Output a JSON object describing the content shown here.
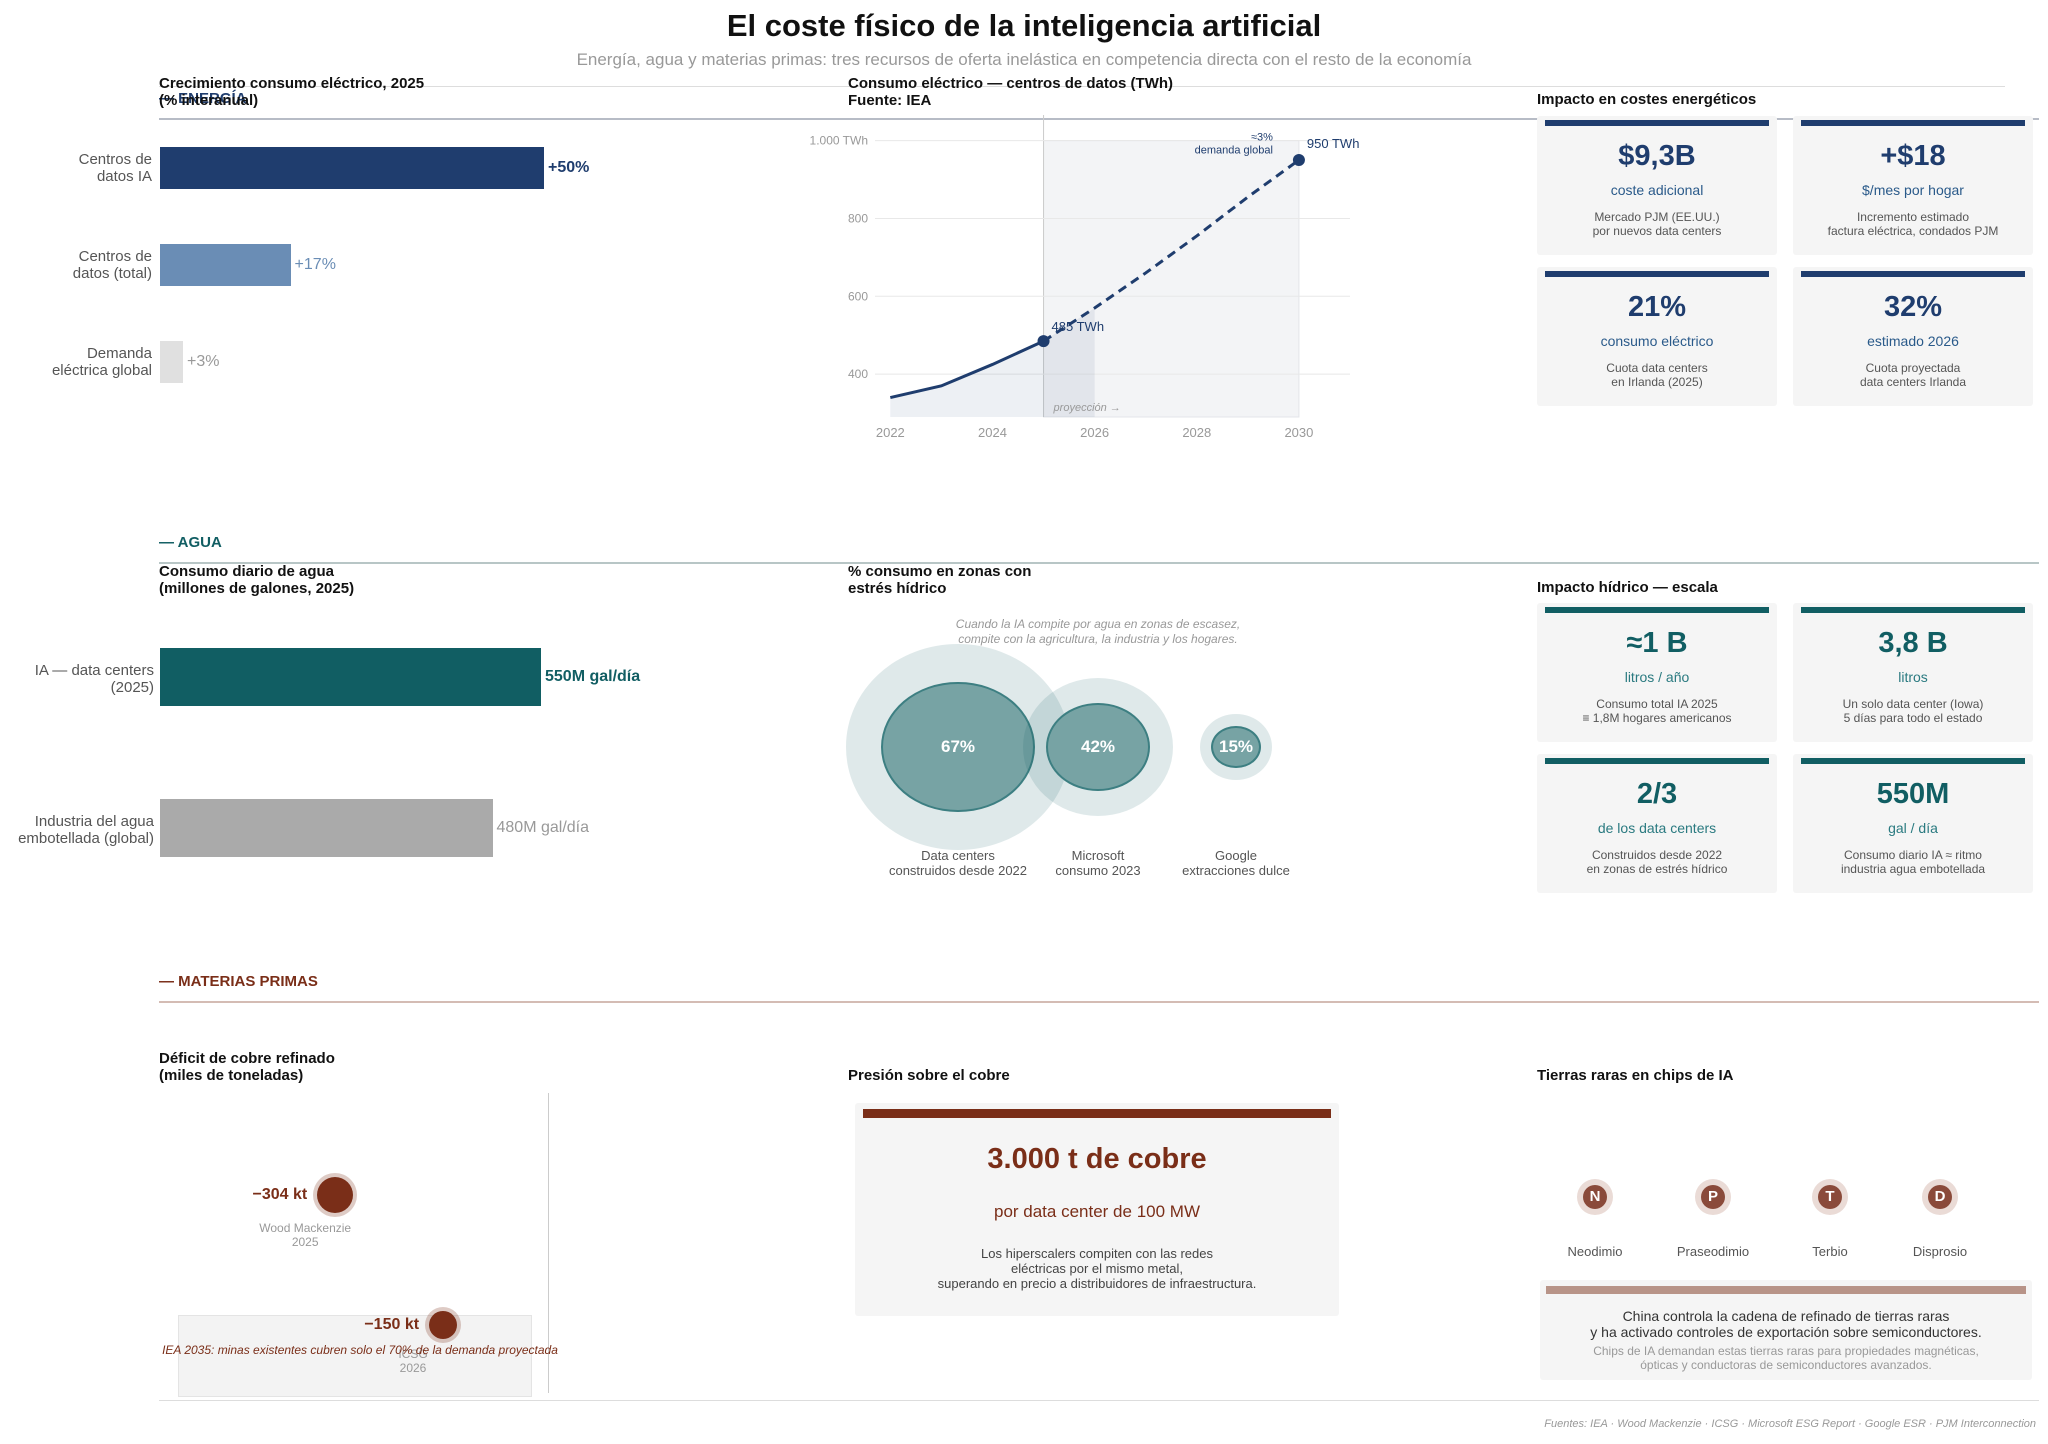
{
  "title": "El coste físico de la inteligencia artificial",
  "subtitle": "Energía, agua y materias primas: tres recursos de oferta inelástica en competencia directa con el resto de la economía",
  "colors": {
    "energy": "#1f3d6e",
    "energy_mid": "#6a8db5",
    "water": "#115e63",
    "materials": "#7a2e18",
    "grey": "#e0e0e0"
  },
  "sections": {
    "energy": "— ENERGÍA",
    "water": "— AGUA",
    "materials": "— MATERIAS PRIMAS"
  },
  "energy": {
    "growth_chart": {
      "title": "Crecimiento consumo eléctrico, 2025\n(% interanual)",
      "bars": [
        {
          "label": "Centros de\ndatos IA",
          "value": 50,
          "display": "+50%"
        },
        {
          "label": "Centros de\ndatos (total)",
          "value": 17,
          "display": "+17%"
        },
        {
          "label": "Demanda\neléctrica global",
          "value": 3,
          "display": "+3%"
        }
      ]
    },
    "line_chart": {
      "title": "Consumo eléctrico — centros de datos (TWh)\nFuente: IEA",
      "x": [
        2022,
        2023,
        2024,
        2025,
        2026,
        2027,
        2028,
        2029,
        2030
      ],
      "y": [
        340,
        370,
        425,
        485,
        570,
        660,
        755,
        855,
        950
      ],
      "actual_until": 2025,
      "x_ticks": [
        "2022",
        "2024",
        "2026",
        "2028",
        "2030"
      ],
      "y_ticks": [
        "400",
        "600",
        "800",
        "1.000 TWh"
      ],
      "y_tick_values": [
        400,
        600,
        800,
        1000
      ],
      "ylim": [
        290,
        1040
      ],
      "xlim": [
        2021.7,
        2031
      ],
      "labels": {
        "point_2025": "485 TWh",
        "point_2030": "950 TWh",
        "share": "≈3%\ndemanda global",
        "projection": "proyección →"
      }
    },
    "impact": {
      "title": "Impacto en costes energéticos",
      "cards": [
        {
          "big": "$9,3B",
          "unit": "coste adicional",
          "desc": "Mercado PJM (EE.UU.)\npor nuevos data centers"
        },
        {
          "big": "+$18",
          "unit": "$/mes por hogar",
          "desc": "Incremento estimado\nfactura eléctrica, condados PJM"
        },
        {
          "big": "21%",
          "unit": "consumo eléctrico",
          "desc": "Cuota data centers\nen Irlanda (2025)"
        },
        {
          "big": "32%",
          "unit": "estimado 2026",
          "desc": "Cuota proyectada\ndata centers Irlanda"
        }
      ]
    }
  },
  "water": {
    "bar_chart": {
      "title": "Consumo diario de agua\n(millones de galones, 2025)",
      "bars": [
        {
          "label": "IA — data centers\n(2025)",
          "value": 550,
          "display": "550M gal/día"
        },
        {
          "label": "Industria del agua\nembotellada (global)",
          "value": 480,
          "display": "480M gal/día"
        }
      ]
    },
    "stress": {
      "title": "% consumo en zonas con\nestrés hídrico",
      "note": "Cuando la IA compite por agua en zonas de escasez,\ncompite con la agricultura, la industria y los hogares.",
      "bubbles": [
        {
          "value": 67,
          "display": "67%",
          "label": "Data centers\nconstruidos desde 2022"
        },
        {
          "value": 42,
          "display": "42%",
          "label": "Microsoft\nconsumo 2023"
        },
        {
          "value": 15,
          "display": "15%",
          "label": "Google\nextracciones dulce"
        }
      ]
    },
    "impact": {
      "title": "Impacto hídrico — escala",
      "cards": [
        {
          "big": "≈1 B",
          "unit": "litros / año",
          "desc": "Consumo total IA 2025\n≡ 1,8M hogares americanos"
        },
        {
          "big": "3,8 B",
          "unit": "litros",
          "desc": "Un solo data center (Iowa)\n5 días para todo el estado"
        },
        {
          "big": "2/3",
          "unit": "de los data centers",
          "desc": "Construidos desde 2022\nen zonas de estrés hídrico"
        },
        {
          "big": "550M",
          "unit": "gal / día",
          "desc": "Consumo diario IA ≈ ritmo\nindustria agua embotellada"
        }
      ]
    }
  },
  "materials": {
    "copper_deficit": {
      "title": "Déficit de cobre refinado\n(miles de toneladas)",
      "points": [
        {
          "value": -304,
          "display": "−304 kt",
          "source": "Wood Mackenzie\n2025"
        },
        {
          "value": -150,
          "display": "−150 kt",
          "source": "ICSG\n2026"
        }
      ],
      "note": "IEA 2035: minas existentes cubren solo el 70% de la demanda proyectada"
    },
    "copper_pressure": {
      "title": "Presión sobre el cobre",
      "big": "3.000 t de cobre",
      "unit": "por data center de 100 MW",
      "desc": "Los hiperscalers compiten con las redes\neléctricas por el mismo metal,\nsuperando en precio a distribuidores de infraestructura."
    },
    "rare_earths": {
      "title": "Tierras raras en chips de IA",
      "elements": [
        {
          "symbol": "N",
          "name": "Neodimio"
        },
        {
          "symbol": "P",
          "name": "Praseodimio"
        },
        {
          "symbol": "T",
          "name": "Terbio"
        },
        {
          "symbol": "D",
          "name": "Disprosio"
        }
      ],
      "box_main": "China controla la cadena de refinado de tierras raras\ny ha activado controles de exportación sobre semiconductores.",
      "box_sub": "Chips de IA demandan estas tierras raras para propiedades magnéticas,\nópticas y conductoras de semiconductores avanzados."
    }
  },
  "sources": "Fuentes: IEA · Wood Mackenzie · ICSG · Microsoft ESG Report · Google ESR · PJM Interconnection"
}
